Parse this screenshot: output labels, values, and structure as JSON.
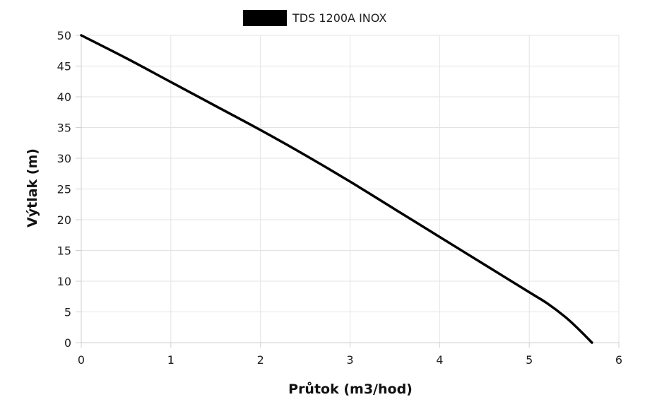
{
  "chart_data": {
    "type": "line",
    "title": "",
    "xlabel": "Průtok (m3/hod)",
    "ylabel": "Výtlak (m)",
    "xlim": [
      0,
      6
    ],
    "ylim": [
      0,
      50
    ],
    "x_ticks": [
      "0",
      "1",
      "2",
      "3",
      "4",
      "5",
      "6"
    ],
    "y_ticks": [
      "0",
      "5",
      "10",
      "15",
      "20",
      "25",
      "30",
      "35",
      "40",
      "45",
      "50"
    ],
    "grid": true,
    "legend_position": "top-center",
    "series": [
      {
        "name": "TDS 1200A INOX",
        "color": "#000000",
        "x": [
          0,
          0.5,
          1,
          1.5,
          2,
          2.5,
          3,
          3.5,
          4,
          4.5,
          5,
          5.2,
          5.4,
          5.55,
          5.7
        ],
        "y": [
          50,
          46.3,
          42.4,
          38.5,
          34.6,
          30.5,
          26.2,
          21.7,
          17.2,
          12.7,
          8.2,
          6.4,
          4.2,
          2.2,
          0
        ]
      }
    ]
  }
}
